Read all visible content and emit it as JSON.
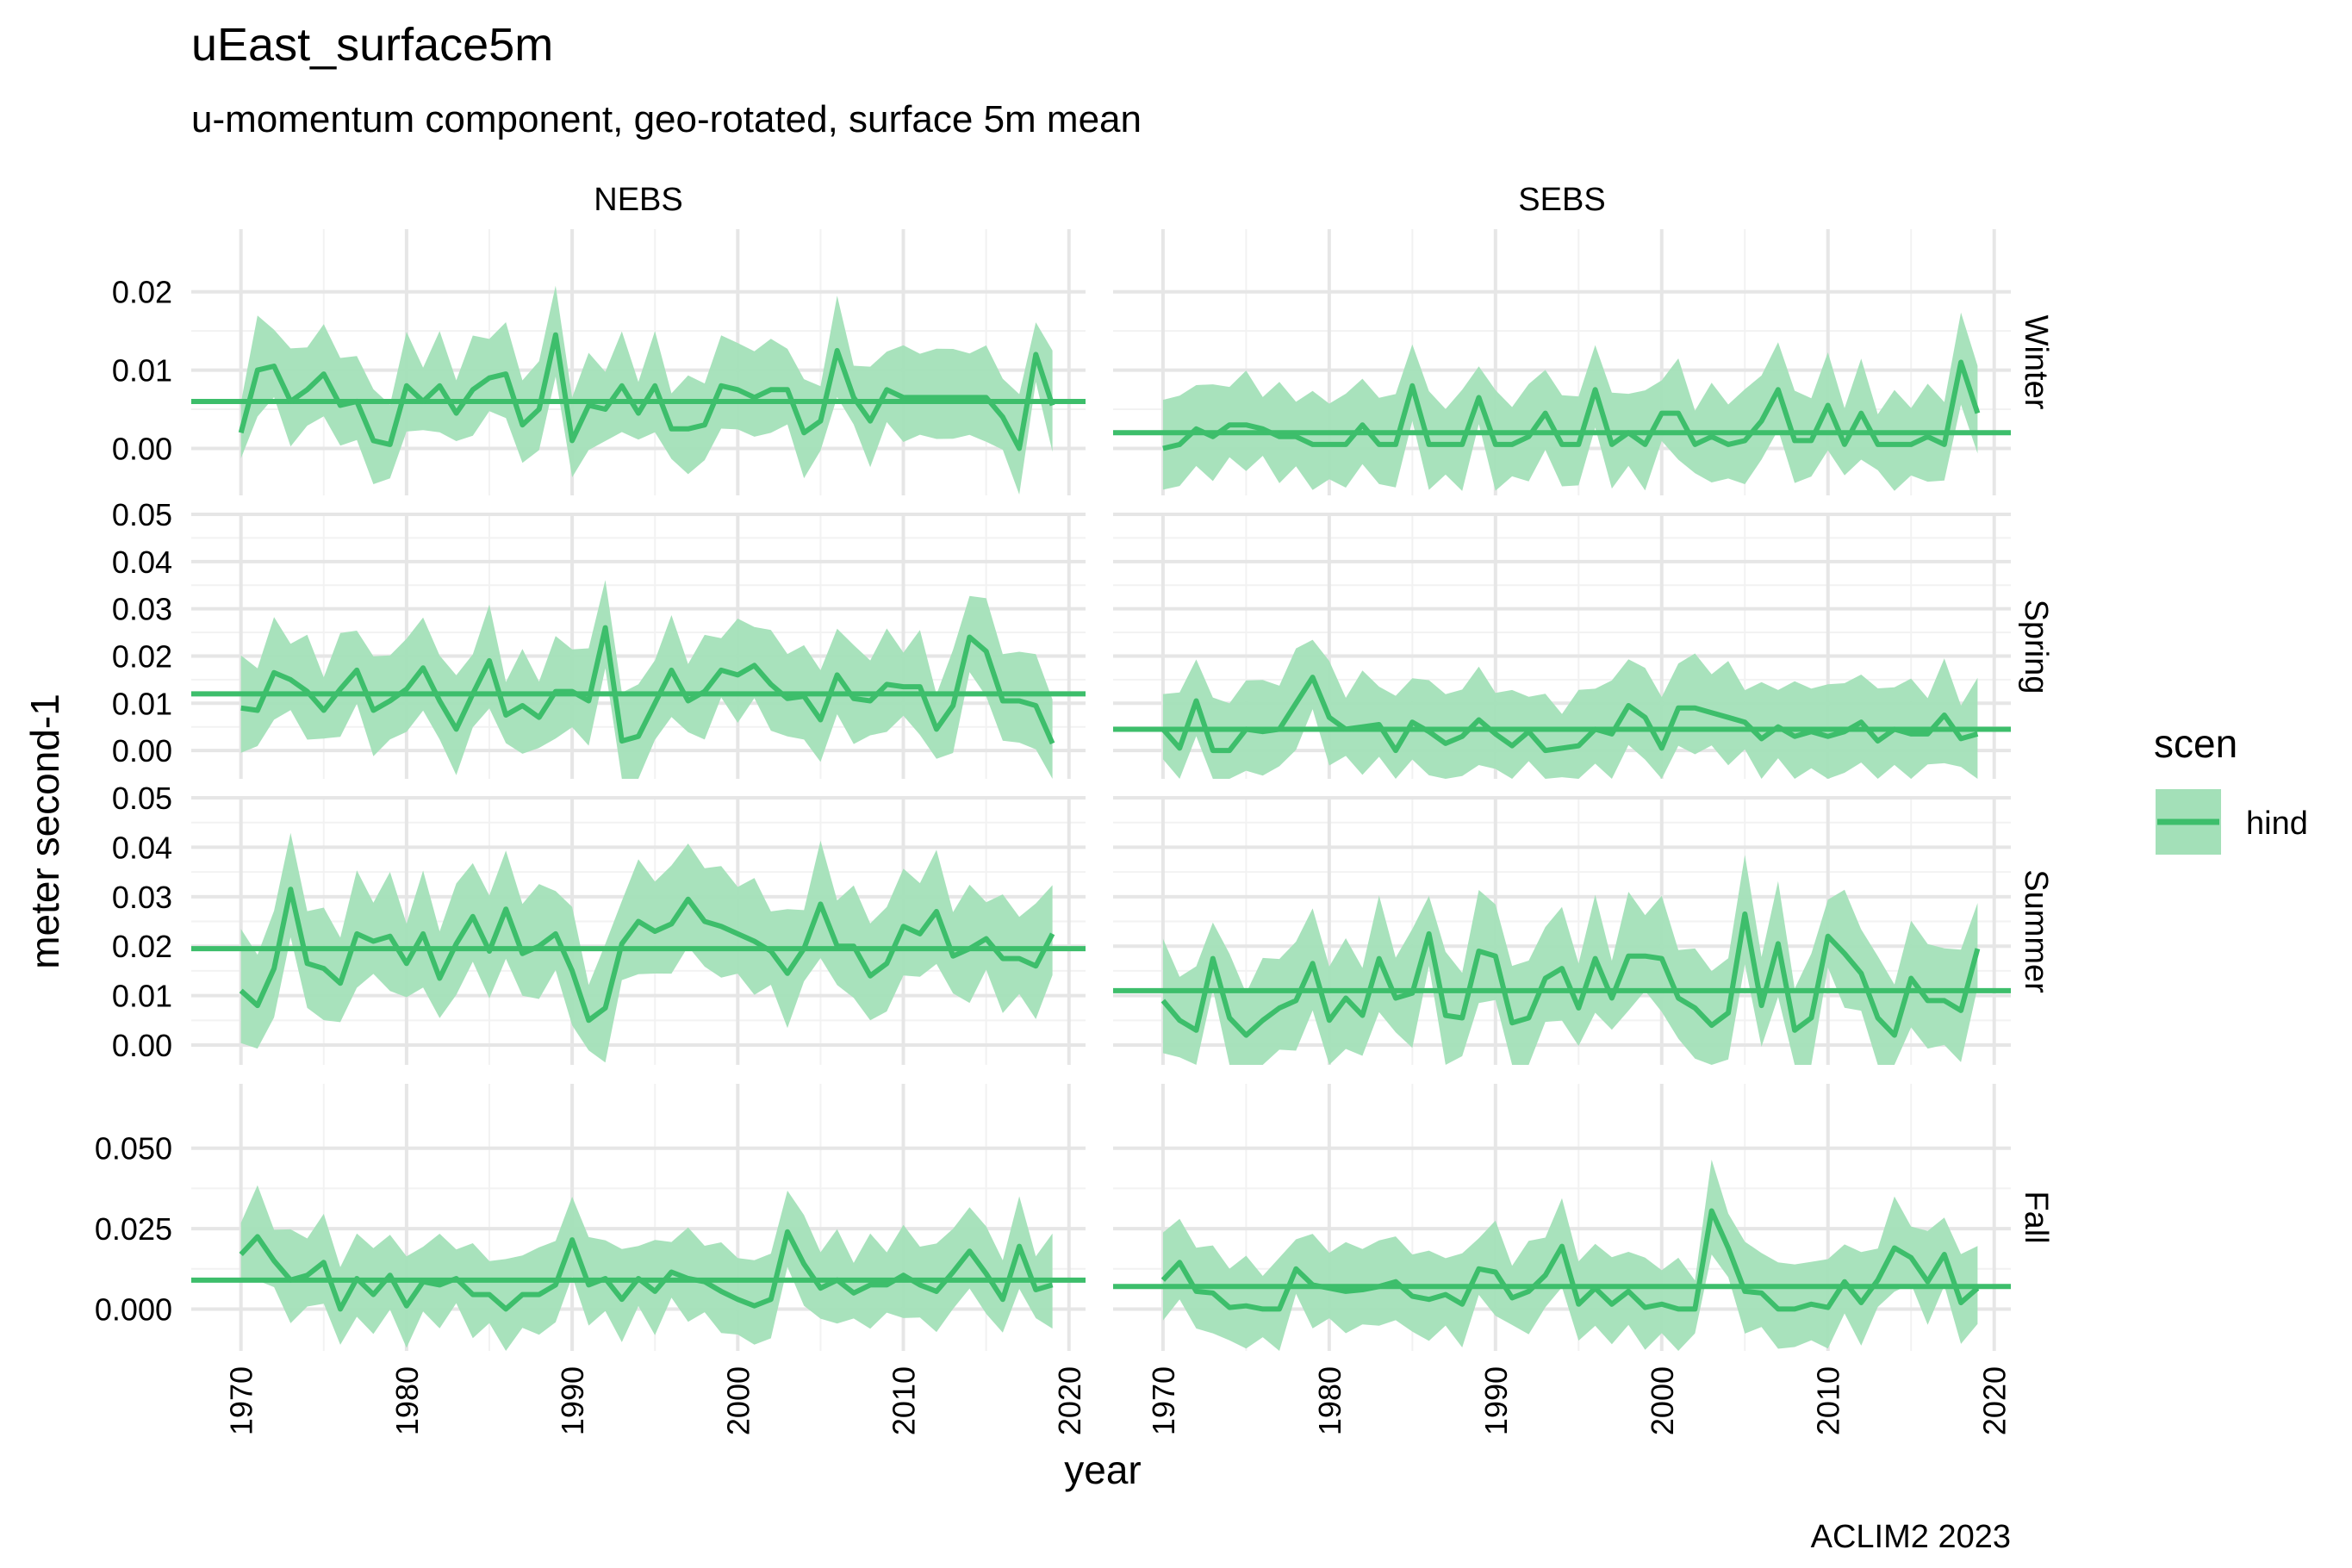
{
  "chart_data": {
    "type": "line",
    "title": "uEast_surface5m",
    "subtitle": "u-momentum component, geo-rotated, surface 5m mean",
    "xlabel": "year",
    "ylabel": "meter second-1",
    "caption": "ACLIM2 2023",
    "columns": [
      "NEBS",
      "SEBS"
    ],
    "rows": [
      "Winter",
      "Spring",
      "Summer",
      "Fall"
    ],
    "x_ticks": [
      1970,
      1980,
      1990,
      2000,
      2010,
      2020
    ],
    "xlim": [
      1967,
      2021
    ],
    "legend": {
      "title": "scen",
      "entries": [
        "hind"
      ],
      "position": "right"
    },
    "series_color": "#3DBE6B",
    "ribbon_color": "#A3E0B8",
    "grid": true,
    "years_start": 1970,
    "years_end": 2019,
    "rows_config": [
      {
        "name": "Winter",
        "ylim": [
          -0.006,
          0.028
        ],
        "y_ticks": [
          0.0,
          0.01,
          0.02
        ],
        "tick_labels": [
          "0.00",
          "0.01",
          "0.02"
        ]
      },
      {
        "name": "Spring",
        "ylim": [
          -0.006,
          0.05
        ],
        "y_ticks": [
          0.0,
          0.01,
          0.02,
          0.03,
          0.04,
          0.05
        ],
        "tick_labels": [
          "0.00",
          "0.01",
          "0.02",
          "0.03",
          "0.04",
          "0.05"
        ]
      },
      {
        "name": "Summer",
        "ylim": [
          -0.004,
          0.05
        ],
        "y_ticks": [
          0.0,
          0.01,
          0.02,
          0.03,
          0.04,
          0.05
        ],
        "tick_labels": [
          "0.00",
          "0.01",
          "0.02",
          "0.03",
          "0.04",
          "0.05"
        ]
      },
      {
        "name": "Fall",
        "ylim": [
          -0.013,
          0.07
        ],
        "y_ticks": [
          0.0,
          0.025,
          0.05
        ],
        "tick_labels": [
          "0.000",
          "0.025",
          "0.050"
        ]
      }
    ],
    "panels": [
      {
        "column": "NEBS",
        "row": "Winter",
        "mean": 0.006,
        "values": [
          0.002,
          0.01,
          0.0105,
          0.006,
          0.0075,
          0.0095,
          0.0055,
          0.006,
          0.001,
          0.0005,
          0.008,
          0.006,
          0.008,
          0.0045,
          0.0075,
          0.009,
          0.0095,
          0.003,
          0.005,
          0.0145,
          0.001,
          0.0055,
          0.005,
          0.008,
          0.0045,
          0.008,
          0.0025,
          0.0025,
          0.003,
          0.008,
          0.0075,
          0.0065,
          0.0075,
          0.0075,
          0.002,
          0.0035,
          0.0125,
          0.0065,
          0.0035,
          0.0075,
          0.0065,
          0.0065,
          0.0065,
          0.0065,
          0.0065,
          0.0065,
          0.004,
          0.0,
          0.012,
          0.0055
        ]
      },
      {
        "column": "SEBS",
        "row": "Winter",
        "mean": 0.002,
        "values": [
          0.0,
          0.0005,
          0.0025,
          0.0015,
          0.003,
          0.003,
          0.0025,
          0.0015,
          0.0015,
          0.0005,
          0.0005,
          0.0005,
          0.003,
          0.0005,
          0.0005,
          0.008,
          0.0005,
          0.0005,
          0.0005,
          0.0065,
          0.0005,
          0.0005,
          0.0015,
          0.0045,
          0.0005,
          0.0005,
          0.0075,
          0.0005,
          0.002,
          0.0005,
          0.0045,
          0.0045,
          0.0005,
          0.0015,
          0.0005,
          0.001,
          0.0035,
          0.0075,
          0.001,
          0.001,
          0.0055,
          0.0005,
          0.0045,
          0.0005,
          0.0005,
          0.0005,
          0.0015,
          0.0005,
          0.011,
          0.0045
        ]
      },
      {
        "column": "NEBS",
        "row": "Spring",
        "mean": 0.012,
        "values": [
          0.009,
          0.0085,
          0.0165,
          0.015,
          0.0125,
          0.0085,
          0.013,
          0.017,
          0.0085,
          0.0105,
          0.013,
          0.0175,
          0.0105,
          0.0045,
          0.012,
          0.019,
          0.0075,
          0.0095,
          0.007,
          0.0125,
          0.0125,
          0.0105,
          0.026,
          0.002,
          0.003,
          0.01,
          0.017,
          0.0105,
          0.0125,
          0.017,
          0.016,
          0.018,
          0.014,
          0.011,
          0.0115,
          0.0065,
          0.016,
          0.011,
          0.0105,
          0.014,
          0.0135,
          0.0135,
          0.0045,
          0.0095,
          0.024,
          0.021,
          0.0105,
          0.0105,
          0.0095,
          0.0015
        ]
      },
      {
        "column": "SEBS",
        "row": "Spring",
        "mean": 0.0045,
        "values": [
          0.0045,
          0.0005,
          0.0105,
          0.0,
          0.0,
          0.0045,
          0.004,
          0.0045,
          0.01,
          0.0155,
          0.007,
          0.0045,
          0.005,
          0.0055,
          0.0,
          0.006,
          0.004,
          0.0015,
          0.003,
          0.0065,
          0.0035,
          0.001,
          0.004,
          0.0,
          0.0005,
          0.001,
          0.0045,
          0.0035,
          0.0095,
          0.007,
          0.0005,
          0.009,
          0.009,
          0.008,
          0.007,
          0.006,
          0.0025,
          0.005,
          0.003,
          0.004,
          0.003,
          0.004,
          0.006,
          0.002,
          0.0045,
          0.0035,
          0.0035,
          0.0075,
          0.0025,
          0.0035
        ]
      },
      {
        "column": "NEBS",
        "row": "Summer",
        "mean": 0.0195,
        "values": [
          0.011,
          0.008,
          0.0155,
          0.0315,
          0.0165,
          0.0155,
          0.0125,
          0.0225,
          0.021,
          0.022,
          0.0165,
          0.0225,
          0.0135,
          0.0205,
          0.026,
          0.019,
          0.0275,
          0.0185,
          0.02,
          0.0225,
          0.015,
          0.005,
          0.0075,
          0.0205,
          0.025,
          0.023,
          0.0245,
          0.0295,
          0.025,
          0.024,
          0.0225,
          0.021,
          0.019,
          0.0145,
          0.0195,
          0.0285,
          0.02,
          0.02,
          0.014,
          0.0165,
          0.024,
          0.0225,
          0.027,
          0.018,
          0.0195,
          0.0215,
          0.0175,
          0.0175,
          0.016,
          0.0225
        ]
      },
      {
        "column": "SEBS",
        "row": "Summer",
        "mean": 0.011,
        "values": [
          0.009,
          0.005,
          0.003,
          0.0175,
          0.0055,
          0.002,
          0.005,
          0.0075,
          0.009,
          0.0165,
          0.005,
          0.0095,
          0.006,
          0.0175,
          0.0095,
          0.0105,
          0.0225,
          0.006,
          0.0055,
          0.019,
          0.018,
          0.0045,
          0.0055,
          0.0135,
          0.0155,
          0.0075,
          0.0175,
          0.0095,
          0.018,
          0.018,
          0.0175,
          0.0095,
          0.0075,
          0.004,
          0.0065,
          0.0265,
          0.008,
          0.0205,
          0.003,
          0.0055,
          0.022,
          0.0185,
          0.0145,
          0.0055,
          0.002,
          0.0135,
          0.009,
          0.009,
          0.007,
          0.0195
        ]
      },
      {
        "column": "NEBS",
        "row": "Fall",
        "mean": 0.009,
        "values": [
          0.017,
          0.0225,
          0.015,
          0.009,
          0.0105,
          0.0145,
          0.0,
          0.0095,
          0.0045,
          0.0105,
          0.001,
          0.0085,
          0.0075,
          0.0095,
          0.0045,
          0.0045,
          0.0,
          0.0045,
          0.0045,
          0.0075,
          0.0215,
          0.0075,
          0.0095,
          0.003,
          0.0095,
          0.0055,
          0.0115,
          0.0095,
          0.0085,
          0.0055,
          0.003,
          0.001,
          0.003,
          0.024,
          0.014,
          0.0065,
          0.009,
          0.005,
          0.0075,
          0.0075,
          0.0105,
          0.0075,
          0.0055,
          0.0115,
          0.018,
          0.011,
          0.003,
          0.0195,
          0.006,
          0.0075
        ]
      },
      {
        "column": "SEBS",
        "row": "Fall",
        "mean": 0.007,
        "values": [
          0.009,
          0.0145,
          0.0055,
          0.005,
          0.0005,
          0.001,
          0.0,
          0.0,
          0.0125,
          0.0075,
          0.0065,
          0.0055,
          0.006,
          0.007,
          0.0085,
          0.004,
          0.003,
          0.0045,
          0.0015,
          0.0125,
          0.0115,
          0.0035,
          0.0055,
          0.0105,
          0.0195,
          0.0015,
          0.0065,
          0.0015,
          0.0055,
          0.0005,
          0.0015,
          0.0,
          0.0,
          0.0305,
          0.019,
          0.0055,
          0.005,
          0.0,
          0.0,
          0.0015,
          0.0005,
          0.0085,
          0.002,
          0.009,
          0.019,
          0.016,
          0.0085,
          0.017,
          0.002,
          0.0065
        ]
      }
    ]
  }
}
